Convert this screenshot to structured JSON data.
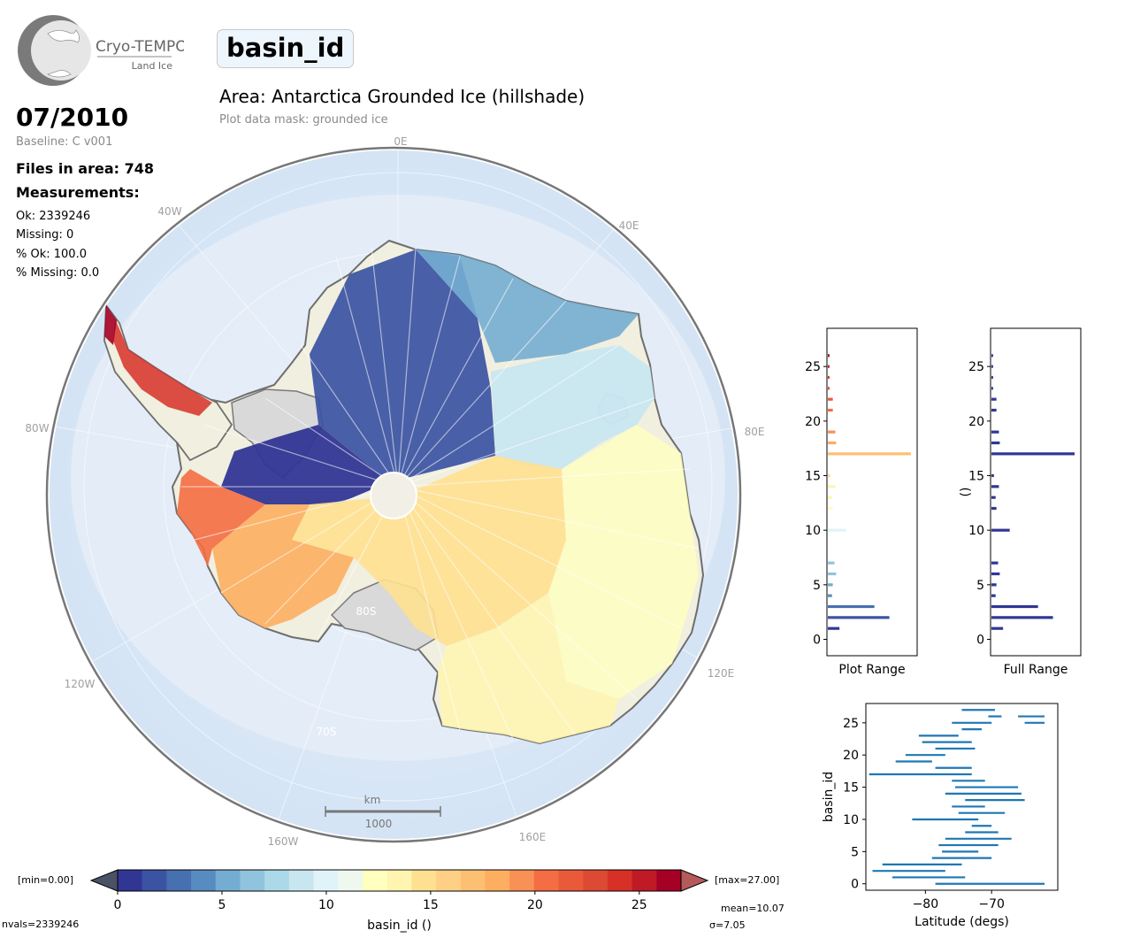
{
  "logo": {
    "name": "Cryo-TEMPO",
    "subtitle": "Land Ice"
  },
  "header": {
    "variable": "basin_id",
    "area_title": "Area: Antarctica Grounded Ice (hillshade)",
    "mask_note": "Plot data mask: grounded ice"
  },
  "stats": {
    "period": "07/2010",
    "baseline": "Baseline: C v001",
    "files": "Files in area: 748",
    "measurements_title": "Measurements:",
    "ok": "Ok: 2339246",
    "missing": "Missing: 0",
    "pct_ok": "% Ok: 100.0",
    "pct_missing": "% Missing: 0.0",
    "nvals": "nvals=2339246",
    "mean": "mean=10.07",
    "sigma": "σ=7.05"
  },
  "map": {
    "lon_labels": [
      "0E",
      "40E",
      "80E",
      "120E",
      "160E",
      "160W",
      "120W",
      "80W",
      "40W"
    ],
    "lat_labels": [
      "80S",
      "70S"
    ],
    "scalebar": {
      "unit": "km",
      "value": "1000"
    }
  },
  "colorbar": {
    "label": "basin_id ()",
    "ticks": [
      "0",
      "5",
      "10",
      "15",
      "20",
      "25"
    ],
    "min_label": "[min=0.00]",
    "max_label": "[max=27.00]",
    "vmin": 0,
    "vmax": 27,
    "bins": 27,
    "colors": [
      "#313695",
      "#3b53a2",
      "#4670b0",
      "#588cc0",
      "#74add1",
      "#90c3dd",
      "#abd9e9",
      "#c8e6f0",
      "#e0f3f8",
      "#eef8ef",
      "#ffffbf",
      "#fff5b0",
      "#fee090",
      "#fed085",
      "#fdbf71",
      "#fdae61",
      "#f99055",
      "#f46d43",
      "#e95a3b",
      "#dc4a33",
      "#d73027",
      "#c01a27",
      "#a50026"
    ],
    "under_color": "#4b5267",
    "over_color": "#b45a58"
  },
  "chart_data": [
    {
      "type": "bar",
      "orientation": "horizontal",
      "xlabel": "Plot Range",
      "ylabel": "",
      "ylim": [
        -1.5,
        28.5
      ],
      "yticks": [
        "0",
        "5",
        "10",
        "15",
        "20",
        "25"
      ],
      "bins": [
        1,
        2,
        3,
        4,
        5,
        6,
        7,
        10,
        12,
        13,
        14,
        15,
        17,
        18,
        19,
        21,
        22,
        23,
        24,
        25,
        26
      ],
      "values": [
        0.14,
        0.74,
        0.56,
        0.05,
        0.06,
        0.1,
        0.08,
        0.22,
        0.06,
        0.05,
        0.09,
        0.03,
        1.0,
        0.1,
        0.09,
        0.06,
        0.06,
        0.02,
        0.02,
        0.02,
        0.02
      ]
    },
    {
      "type": "bar",
      "orientation": "horizontal",
      "xlabel": "Full Range",
      "ylabel": "()",
      "ylim": [
        -1.5,
        28.5
      ],
      "yticks": [
        "0",
        "5",
        "10",
        "15",
        "20",
        "25"
      ],
      "bins": [
        1,
        2,
        3,
        4,
        5,
        6,
        7,
        10,
        12,
        13,
        14,
        15,
        17,
        18,
        19,
        21,
        22,
        23,
        24,
        25,
        26
      ],
      "values": [
        0.14,
        0.74,
        0.56,
        0.05,
        0.06,
        0.1,
        0.08,
        0.22,
        0.06,
        0.05,
        0.09,
        0.03,
        1.0,
        0.1,
        0.09,
        0.06,
        0.06,
        0.02,
        0.02,
        0.02,
        0.02
      ]
    },
    {
      "type": "scatter",
      "xlabel": "Latitude (degs)",
      "ylabel": "basin_id",
      "xlim": [
        -89,
        -60
      ],
      "ylim": [
        -1,
        28
      ],
      "xticks": [
        "−80",
        "−70"
      ],
      "yticks": [
        "0",
        "5",
        "10",
        "15",
        "20",
        "25"
      ],
      "ranges": [
        {
          "y": 0,
          "x0": -78.5,
          "x1": -62
        },
        {
          "y": 1,
          "x0": -85,
          "x1": -74
        },
        {
          "y": 2,
          "x0": -88,
          "x1": -77
        },
        {
          "y": 3,
          "x0": -86.5,
          "x1": -74.5
        },
        {
          "y": 4,
          "x0": -79,
          "x1": -70
        },
        {
          "y": 5,
          "x0": -77.5,
          "x1": -72
        },
        {
          "y": 6,
          "x0": -78,
          "x1": -69
        },
        {
          "y": 7,
          "x0": -77,
          "x1": -67
        },
        {
          "y": 8,
          "x0": -74,
          "x1": -69
        },
        {
          "y": 9,
          "x0": -73,
          "x1": -70
        },
        {
          "y": 10,
          "x0": -82,
          "x1": -72
        },
        {
          "y": 11,
          "x0": -75,
          "x1": -68
        },
        {
          "y": 12,
          "x0": -76,
          "x1": -71
        },
        {
          "y": 13,
          "x0": -74,
          "x1": -65
        },
        {
          "y": 14,
          "x0": -77,
          "x1": -65.5
        },
        {
          "y": 15,
          "x0": -75.5,
          "x1": -66
        },
        {
          "y": 16,
          "x0": -76,
          "x1": -71
        },
        {
          "y": 17,
          "x0": -88.5,
          "x1": -73
        },
        {
          "y": 18,
          "x0": -78.5,
          "x1": -73
        },
        {
          "y": 19,
          "x0": -84.5,
          "x1": -79
        },
        {
          "y": 20,
          "x0": -83,
          "x1": -77
        },
        {
          "y": 21,
          "x0": -78.5,
          "x1": -72.5
        },
        {
          "y": 22,
          "x0": -80.5,
          "x1": -73
        },
        {
          "y": 23,
          "x0": -81,
          "x1": -75
        },
        {
          "y": 24,
          "x0": -74.5,
          "x1": -71.5
        },
        {
          "y": 25,
          "x0": -76,
          "x1": -70
        },
        {
          "y": 25,
          "x0": -65,
          "x1": -62
        },
        {
          "y": 26,
          "x0": -70.5,
          "x1": -68.5
        },
        {
          "y": 26,
          "x0": -66,
          "x1": -62
        },
        {
          "y": 27,
          "x0": -74.5,
          "x1": -69.5
        }
      ]
    }
  ]
}
